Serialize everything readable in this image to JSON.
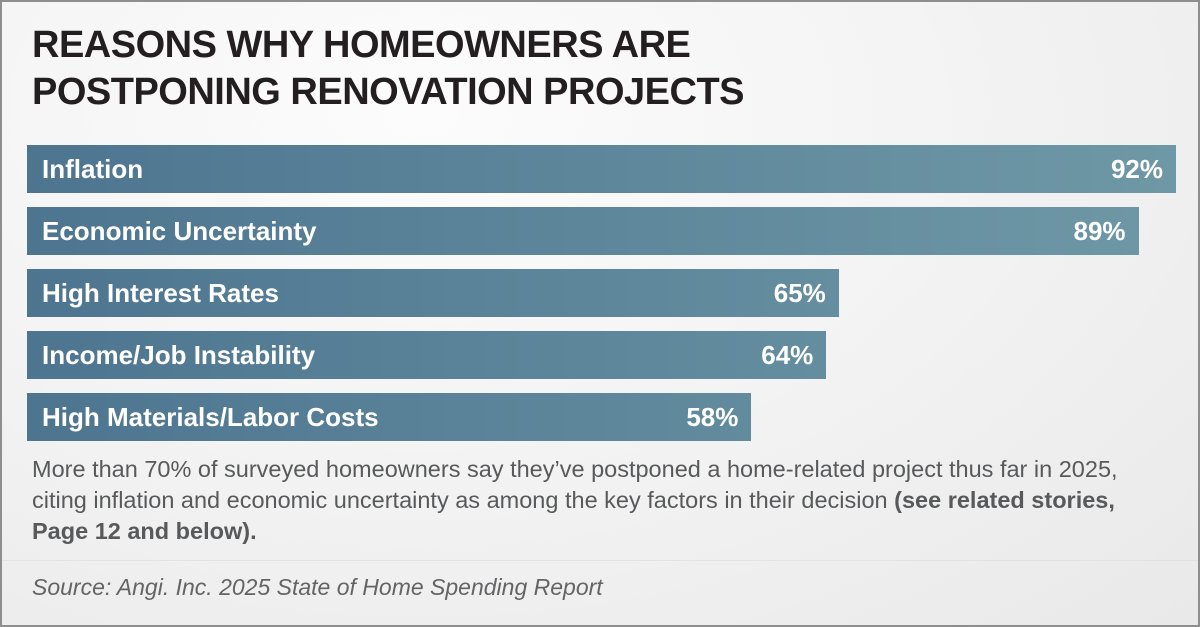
{
  "colors": {
    "frame_border": "#8e8e8e",
    "background_light": "#fcfcfc",
    "background_dark": "#e9e9e9",
    "bar_gradient_left": "#4d7590",
    "bar_gradient_right": "#6f98a6",
    "bar_text": "#ffffff",
    "title_text": "#231f20",
    "body_text": "#58595b",
    "source_text": "#636466"
  },
  "chart_data": {
    "type": "bar",
    "orientation": "horizontal",
    "title": "REASONS WHY HOMEOWNERS ARE\nPOSTPONING RENOVATION PROJECTS",
    "categories": [
      "Inflation",
      "Economic Uncertainty",
      "High Interest Rates",
      "Income/Job Instability",
      "High Materials/Labor Costs"
    ],
    "values": [
      92,
      89,
      65,
      64,
      58
    ],
    "value_suffix": "%",
    "xlim": [
      0,
      92
    ],
    "grid": false,
    "legend": "none",
    "category_labels": "inside-start",
    "value_labels": "inside-end"
  },
  "caption": {
    "normal_part": "More than 70% of surveyed homeowners say they’ve postponed a home-related project thus far in 2025, citing inflation and economic uncertainty as among the key factors in their decision ",
    "bold_part": "(see related stories, Page 12 and below)."
  },
  "source": {
    "label": "Source: Angi. Inc. 2025 State of Home Spending Report"
  }
}
